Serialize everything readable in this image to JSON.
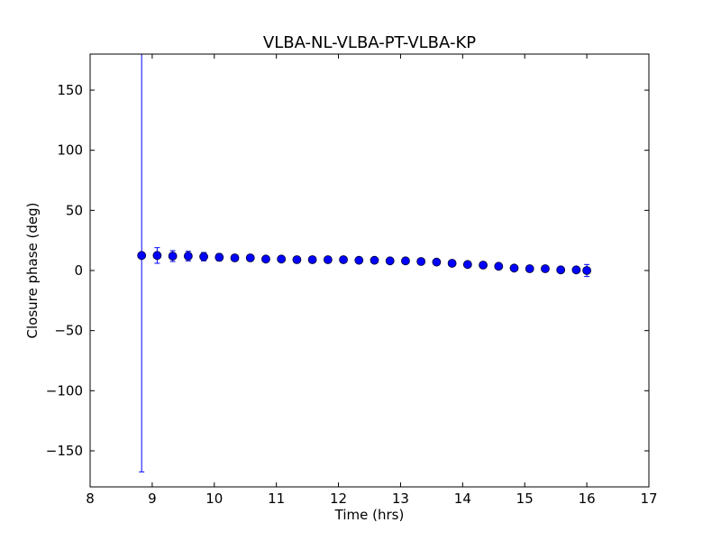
{
  "chart_data": {
    "type": "scatter",
    "title": "VLBA-NL-VLBA-PT-VLBA-KP",
    "xlabel": "Time (hrs)",
    "ylabel": "Closure phase (deg)",
    "xlim": [
      8,
      17
    ],
    "ylim": [
      -180,
      180
    ],
    "xticks": [
      8,
      9,
      10,
      11,
      12,
      13,
      14,
      15,
      16,
      17
    ],
    "xtick_labels": [
      "8",
      "9",
      "10",
      "11",
      "12",
      "13",
      "14",
      "15",
      "16",
      "17"
    ],
    "yticks": [
      -150,
      -100,
      -50,
      0,
      50,
      100,
      150
    ],
    "ytick_labels": [
      "−150",
      "−100",
      "−50",
      "0",
      "50",
      "100",
      "150"
    ],
    "grid": false,
    "marker_color": "#0000ff",
    "series": [
      {
        "x": [
          8.83,
          9.08,
          9.33,
          9.58,
          9.83,
          10.08,
          10.33,
          10.58,
          10.83,
          11.08,
          11.33,
          11.58,
          11.83,
          12.08,
          12.33,
          12.58,
          12.83,
          13.08,
          13.33,
          13.58,
          13.83,
          14.08,
          14.33,
          14.58,
          14.83,
          15.08,
          15.33,
          15.58,
          15.83,
          16.0
        ],
        "y": [
          12.5,
          12.5,
          12.0,
          12.0,
          11.5,
          11.0,
          10.5,
          10.5,
          9.5,
          9.5,
          9.0,
          9.0,
          9.0,
          9.0,
          8.5,
          8.5,
          8.0,
          8.0,
          7.5,
          7.0,
          6.0,
          5.0,
          4.5,
          3.5,
          2.0,
          1.5,
          1.5,
          0.5,
          0.5,
          0.0
        ],
        "yerr": [
          180,
          6.5,
          4.5,
          4.0,
          3.5,
          3.0,
          2.5,
          2.5,
          2.0,
          2.0,
          2.0,
          2.0,
          2.0,
          2.0,
          2.0,
          2.0,
          2.0,
          2.0,
          2.0,
          2.0,
          2.0,
          2.0,
          2.0,
          2.0,
          2.0,
          2.0,
          2.0,
          2.0,
          2.5,
          5.0
        ]
      }
    ]
  }
}
